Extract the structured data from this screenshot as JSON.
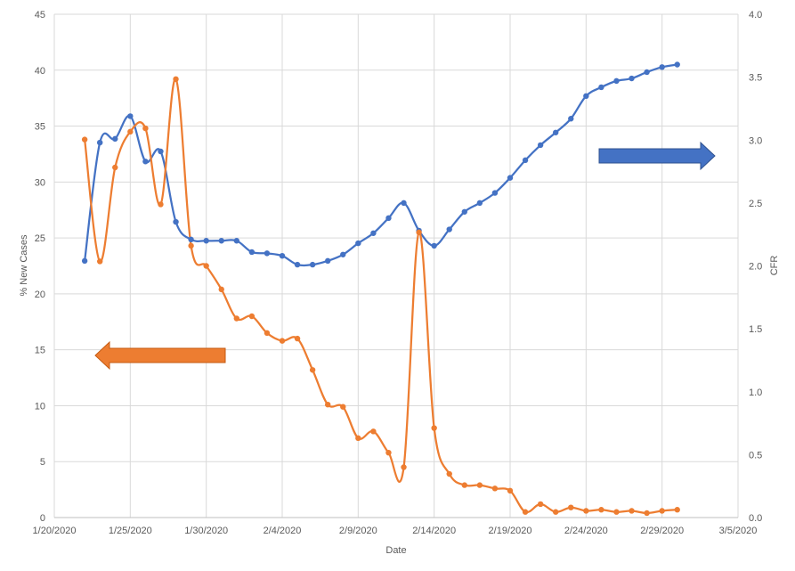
{
  "chart_data": {
    "type": "line",
    "title": "",
    "xlabel": "Date",
    "ylabel_left": "% New Cases",
    "ylabel_right": "CFR",
    "x_range": [
      "2020-01-20",
      "2020-03-05"
    ],
    "x_ticks": [
      "1/20/2020",
      "1/25/2020",
      "1/30/2020",
      "2/4/2020",
      "2/9/2020",
      "2/14/2020",
      "2/19/2020",
      "2/24/2020",
      "2/29/2020",
      "3/5/2020"
    ],
    "ylim_left": [
      0,
      45
    ],
    "y_ticks_left": [
      "0",
      "5",
      "10",
      "15",
      "20",
      "25",
      "30",
      "35",
      "40",
      "45"
    ],
    "ylim_right": [
      0,
      4
    ],
    "y_ticks_right": [
      "0.0",
      "0.5",
      "1.0",
      "1.5",
      "2.0",
      "2.5",
      "3.0",
      "3.5",
      "4.0"
    ],
    "grid": true,
    "x": [
      "2020-01-22",
      "2020-01-23",
      "2020-01-24",
      "2020-01-25",
      "2020-01-26",
      "2020-01-27",
      "2020-01-28",
      "2020-01-29",
      "2020-01-30",
      "2020-01-31",
      "2020-02-01",
      "2020-02-02",
      "2020-02-03",
      "2020-02-04",
      "2020-02-05",
      "2020-02-06",
      "2020-02-07",
      "2020-02-08",
      "2020-02-09",
      "2020-02-10",
      "2020-02-11",
      "2020-02-12",
      "2020-02-13",
      "2020-02-14",
      "2020-02-15",
      "2020-02-16",
      "2020-02-17",
      "2020-02-18",
      "2020-02-19",
      "2020-02-20",
      "2020-02-21",
      "2020-02-22",
      "2020-02-23",
      "2020-02-24",
      "2020-02-25",
      "2020-02-26",
      "2020-02-27",
      "2020-02-28",
      "2020-02-29",
      "2020-03-01"
    ],
    "series": [
      {
        "axis": "right",
        "color": "#4472c4",
        "values": [
          2.04,
          2.98,
          3.01,
          3.19,
          2.83,
          2.91,
          2.35,
          2.21,
          2.2,
          2.2,
          2.2,
          2.11,
          2.1,
          2.08,
          2.01,
          2.01,
          2.04,
          2.09,
          2.18,
          2.26,
          2.38,
          2.5,
          2.28,
          2.16,
          2.29,
          2.43,
          2.5,
          2.58,
          2.7,
          2.84,
          2.96,
          3.06,
          3.17,
          3.35,
          3.42,
          3.47,
          3.49,
          3.54,
          3.58,
          3.6
        ]
      },
      {
        "axis": "left",
        "color": "#ed7d31",
        "values": [
          33.8,
          22.9,
          31.3,
          34.5,
          34.8,
          28.0,
          39.2,
          24.3,
          22.5,
          20.4,
          17.8,
          18.0,
          16.5,
          15.8,
          16.0,
          13.2,
          10.1,
          9.9,
          7.1,
          7.7,
          5.8,
          4.5,
          25.5,
          8.0,
          3.9,
          2.9,
          2.9,
          2.6,
          2.4,
          0.5,
          1.2,
          0.5,
          0.9,
          0.6,
          0.7,
          0.5,
          0.6,
          0.4,
          0.6,
          0.7
        ]
      }
    ],
    "annotations": [
      {
        "type": "arrow",
        "direction": "right",
        "color": "#4472c4",
        "meaning": "points to CFR axis"
      },
      {
        "type": "arrow",
        "direction": "left",
        "color": "#ed7d31",
        "meaning": "points to % New Cases axis"
      }
    ]
  }
}
